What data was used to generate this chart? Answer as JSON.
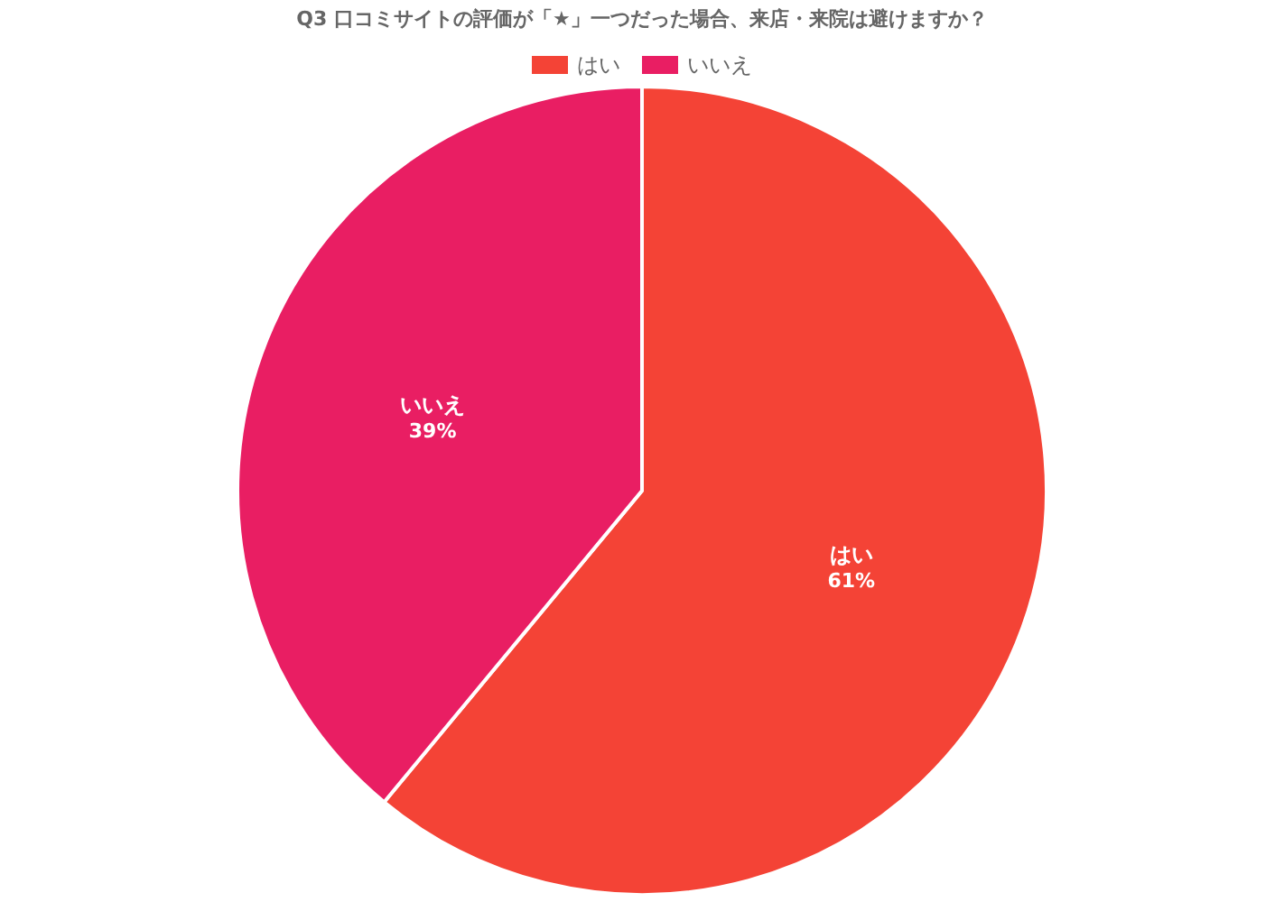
{
  "chart_data": {
    "type": "pie",
    "title": "Q3 口コミサイトの評価が「★」一つだった場合、来店・来院は避けますか？",
    "categories": [
      "はい",
      "いいえ"
    ],
    "values": [
      61,
      39
    ],
    "colors": [
      "#f44336",
      "#e91e63"
    ],
    "legend": "top",
    "value_labels": [
      "61%",
      "39%"
    ]
  }
}
